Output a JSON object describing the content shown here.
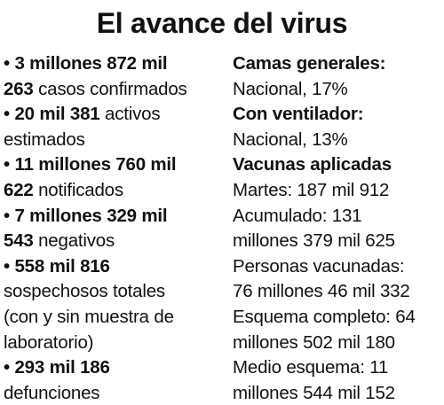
{
  "title": "El avance del virus",
  "left": {
    "confirmed": {
      "value_line1": "3 millones 872 mil",
      "value_line2": "263",
      "label": " casos confirmados"
    },
    "active": {
      "value": "20 mil 381",
      "label_line1": " activos",
      "label_line2": "estimados"
    },
    "notified": {
      "value_line1": "11 millones 760 mil",
      "value_line2": "622",
      "label": " notificados"
    },
    "negative": {
      "value_line1": "7 millones 329 mil",
      "value_line2": "543",
      "label": " negativos"
    },
    "suspected": {
      "value": "558 mil 816",
      "label_line1": "sospechosos totales",
      "label_line2": "(con y sin muestra de",
      "label_line3": "laboratorio)"
    },
    "deaths": {
      "value": "293 mil 186",
      "label": "defunciones"
    },
    "bullet": "•"
  },
  "right": {
    "general_beds": {
      "heading": "Camas generales:",
      "value": "Nacional, 17%"
    },
    "ventilator": {
      "heading": "Con ventilador:",
      "value": "Nacional, 13%"
    },
    "vaccines": {
      "heading": "Vacunas aplicadas",
      "lines": [
        "Martes: 187 mil 912",
        "Acumulado: 131",
        "millones 379 mil 625",
        "Personas vacunadas:",
        "76 millones 46 mil 332",
        "Esquema completo: 64",
        "millones 502 mil 180",
        "Medio esquema: 11",
        "millones 544 mil 152"
      ]
    }
  }
}
